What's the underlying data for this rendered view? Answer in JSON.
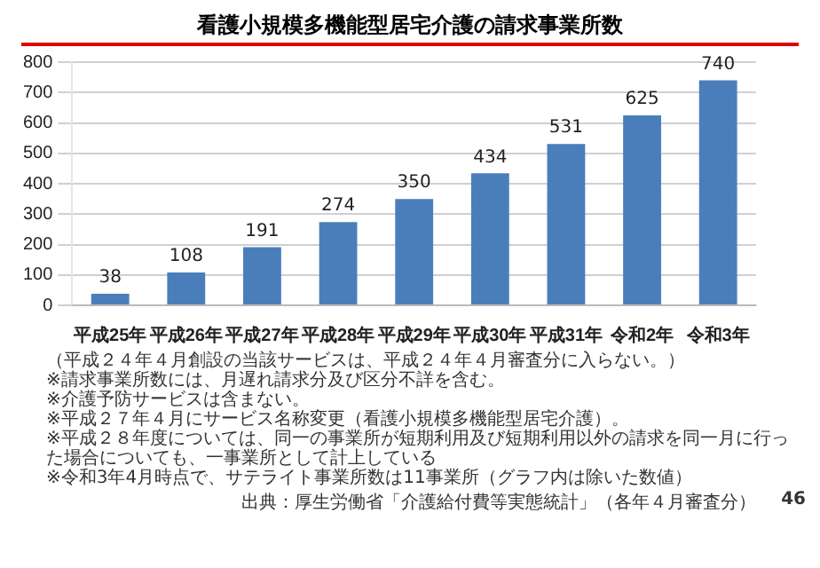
{
  "chart_data": {
    "type": "bar",
    "title": "看護小規模多機能型居宅介護の請求事業所数",
    "categories": [
      "平成25年",
      "平成26年",
      "平成27年",
      "平成28年",
      "平成29年",
      "平成30年",
      "平成31年",
      "令和2年",
      "令和3年"
    ],
    "values": [
      38,
      108,
      191,
      274,
      350,
      434,
      531,
      625,
      740
    ],
    "color": "#4a7ebb",
    "ylim": [
      0,
      800
    ],
    "yticks": [
      0,
      100,
      200,
      300,
      400,
      500,
      600,
      700,
      800
    ],
    "grid": "y",
    "data_labels": true,
    "legend": false,
    "annotations": [
      "（平成２４年４月創設の当該サービスは、平成２４年４月審査分に入らない。）",
      "※請求事業所数には、月遅れ請求分及び区分不詳を含む。",
      "※介護予防サービスは含まない。",
      "※平成２７年４月にサービス名称変更（看護小規模多機能型居宅介護）。",
      "※平成２８年度については、同一の事業所が短期利用及び短期利用以外の請求を同一月に行った場合についても、一事業所として計上している",
      "※令和3年4月時点で、サテライト事業所数は11事業所（グラフ内は除いた数値）",
      "出典：厚生労働省「介護給付費等実態統計」（各年４月審査分）",
      "46"
    ]
  }
}
